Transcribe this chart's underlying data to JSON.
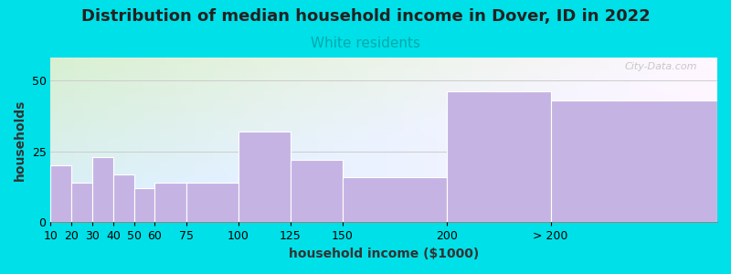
{
  "title": "Distribution of median household income in Dover, ID in 2022",
  "subtitle": "White residents",
  "xlabel": "household income ($1000)",
  "ylabel": "households",
  "bar_labels": [
    "10",
    "20",
    "30",
    "40",
    "50",
    "60",
    "75",
    "100",
    "125",
    "150",
    "200",
    "> 200"
  ],
  "bar_values": [
    20,
    14,
    23,
    17,
    12,
    14,
    14,
    32,
    22,
    16,
    46,
    43
  ],
  "bar_lefts": [
    10,
    20,
    30,
    40,
    50,
    60,
    75,
    100,
    125,
    150,
    200,
    250
  ],
  "bar_rights": [
    20,
    30,
    40,
    50,
    60,
    75,
    100,
    125,
    150,
    200,
    250,
    330
  ],
  "bar_color": "#c5b4e3",
  "bar_edgecolor": "#ffffff",
  "ylim": [
    0,
    58
  ],
  "yticks": [
    0,
    25,
    50
  ],
  "background_outer": "#00e0e8",
  "background_inner_topleft": "#d8f0d0",
  "background_inner_topright": "#f0f8f8",
  "background_inner_bottom": "#f8fcfa",
  "title_fontsize": 13,
  "subtitle_fontsize": 11,
  "subtitle_color": "#00aaaa",
  "axis_label_fontsize": 10,
  "tick_fontsize": 9,
  "grid_color": "#cccccc",
  "watermark_text": "City-Data.com",
  "xlim_left": 10,
  "xlim_right": 330
}
